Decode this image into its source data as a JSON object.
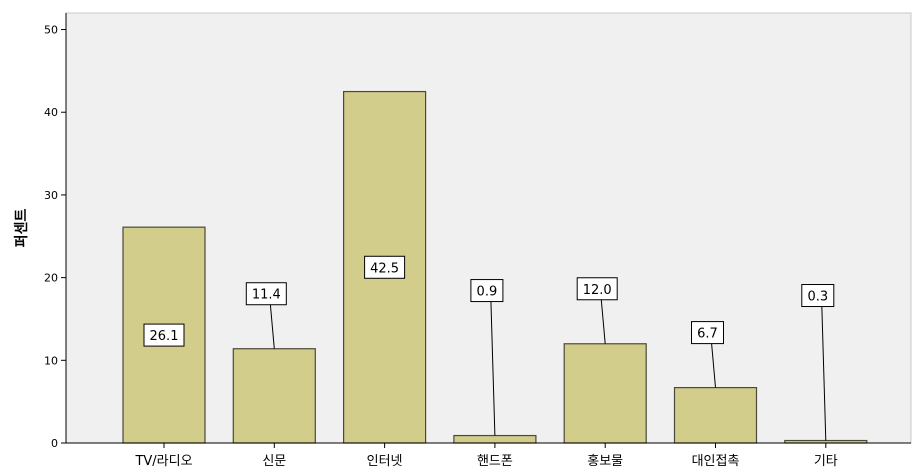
{
  "chart_data": {
    "type": "bar",
    "title": "",
    "xlabel": "",
    "ylabel": "퍼센트",
    "categories": [
      "TV/라디오",
      "신문",
      "인터넷",
      "핸드폰",
      "홍보물",
      "대인접촉",
      "기타"
    ],
    "values": [
      26.1,
      11.4,
      42.5,
      0.9,
      12.0,
      6.7,
      0.3
    ],
    "data_labels": [
      "26.1",
      "11.4",
      "42.5",
      "0.9",
      "12.0",
      "6.7",
      "0.3"
    ],
    "ylim": [
      0,
      52
    ],
    "yticks": [
      0,
      10,
      20,
      30,
      40,
      50
    ],
    "grid": false,
    "legend": "none",
    "colors": {
      "bar_fill": "#d3cd8b",
      "bar_stroke": "#4a4a3a",
      "plot_background": "#f0f0f0",
      "axis": "#000000"
    }
  }
}
